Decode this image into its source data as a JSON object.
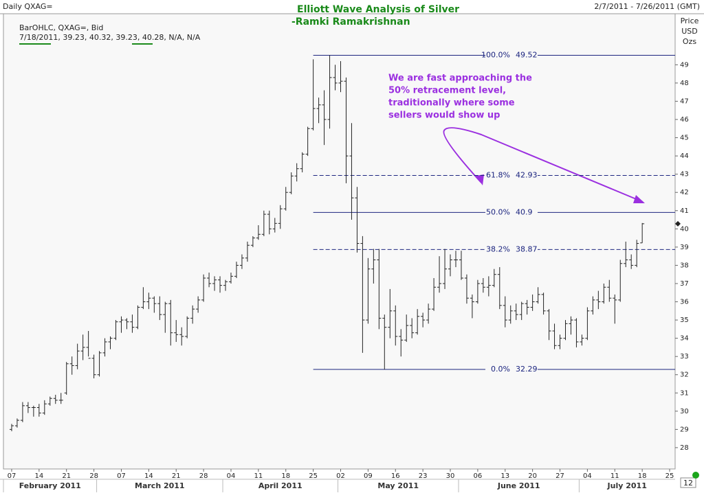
{
  "chart_data": {
    "type": "ohlc",
    "symbol": "Daily QXAG=",
    "title": "Elliott Wave Analysis of Silver",
    "subtitle": "-Ramki Ramakrishnan",
    "date_range": "2/7/2011 - 7/26/2011 (GMT)",
    "series_label": "BarOHLC, QXAG=, Bid",
    "info_line": "7/18/2011, 39.23, 40.32, 39.23, 40.28, N/A, N/A",
    "y_axis_label": [
      "Price",
      "USD",
      "Ozs"
    ],
    "annotation": [
      "We are fast approaching the",
      "50% retracement level,",
      "traditionally where some",
      "sellers would show up"
    ],
    "page_number": "12",
    "color": "#222222",
    "open": [
      29.0,
      29.2,
      29.5,
      30.3,
      30.2,
      30.2,
      29.9,
      30.4,
      30.7,
      30.6,
      31.0,
      32.6,
      32.5,
      33.3,
      33.5,
      32.9,
      32.0,
      33.2,
      33.8,
      34.0,
      34.9,
      35.0,
      34.9,
      34.6,
      35.7,
      36.0,
      36.2,
      35.9,
      35.3,
      35.9,
      34.3,
      34.2,
      34.1,
      35.1,
      35.6,
      36.1,
      37.3,
      37.0,
      37.2,
      36.9,
      37.1,
      37.4,
      38.0,
      38.4,
      39.1,
      39.5,
      39.7,
      40.8,
      40.0,
      40.3,
      41.1,
      42.0,
      42.9,
      43.3,
      44.1,
      45.5,
      46.6,
      46.8,
      46.0,
      48.3,
      48.0,
      48.1,
      44.0,
      41.7,
      39.2,
      35.0,
      37.8,
      38.3,
      35.1,
      34.6,
      35.5,
      34.1,
      33.9,
      34.7,
      34.3,
      35.2,
      35.0,
      35.6,
      36.8,
      37.0,
      37.8,
      38.3,
      38.3,
      37.3,
      36.2,
      36.0,
      37.0,
      36.8,
      36.9,
      37.5,
      35.8,
      35.0,
      35.5,
      35.3,
      35.9,
      35.7,
      36.0,
      36.4,
      35.5,
      34.4,
      33.6,
      34.0,
      34.8,
      35.0,
      33.8,
      34.0,
      35.5,
      36.1,
      36.0,
      36.8,
      36.2,
      36.1,
      38.1,
      38.3,
      38.0,
      39.23
    ],
    "high": [
      29.3,
      29.6,
      30.5,
      30.5,
      30.3,
      30.4,
      30.6,
      30.8,
      30.9,
      31.0,
      32.7,
      33.0,
      33.7,
      34.2,
      34.4,
      33.1,
      33.3,
      34.0,
      34.1,
      35.0,
      35.2,
      35.1,
      35.3,
      35.8,
      36.8,
      36.5,
      36.3,
      36.3,
      36.0,
      36.1,
      35.0,
      34.6,
      35.2,
      35.8,
      36.3,
      37.5,
      37.6,
      37.4,
      37.4,
      37.2,
      37.6,
      38.2,
      38.6,
      39.3,
      39.6,
      40.2,
      41.0,
      41.0,
      40.6,
      41.3,
      42.3,
      43.1,
      43.6,
      44.2,
      45.6,
      49.3,
      47.2,
      47.6,
      49.52,
      49.0,
      49.2,
      48.3,
      45.8,
      42.3,
      39.6,
      38.4,
      38.9,
      38.9,
      35.3,
      36.7,
      35.8,
      34.5,
      35.3,
      35.1,
      35.6,
      35.4,
      35.9,
      37.3,
      38.5,
      38.9,
      38.6,
      38.8,
      38.8,
      37.5,
      36.4,
      37.2,
      37.3,
      37.4,
      37.8,
      37.9,
      36.3,
      35.8,
      35.9,
      36.0,
      36.1,
      36.4,
      36.8,
      36.5,
      35.6,
      34.8,
      34.2,
      35.0,
      35.2,
      35.1,
      34.2,
      35.7,
      36.3,
      36.6,
      37.0,
      37.2,
      36.4,
      38.3,
      39.3,
      38.6,
      39.4,
      40.32
    ],
    "low": [
      28.9,
      29.1,
      29.4,
      29.9,
      29.7,
      29.7,
      29.8,
      30.3,
      30.4,
      30.4,
      30.9,
      32.0,
      32.3,
      32.8,
      33.0,
      31.8,
      31.9,
      33.0,
      33.4,
      33.9,
      34.3,
      34.5,
      34.3,
      34.5,
      35.6,
      35.6,
      35.4,
      35.0,
      34.3,
      33.6,
      33.8,
      33.6,
      34.0,
      34.8,
      35.4,
      36.0,
      36.8,
      36.6,
      36.5,
      36.6,
      37.0,
      37.3,
      37.8,
      38.2,
      39.0,
      39.4,
      39.6,
      39.7,
      39.8,
      40.0,
      41.0,
      41.9,
      42.6,
      43.1,
      44.0,
      45.4,
      45.8,
      44.6,
      45.5,
      47.6,
      47.5,
      42.5,
      40.5,
      38.7,
      33.2,
      34.8,
      37.0,
      34.5,
      32.29,
      34.0,
      33.6,
      33.0,
      33.8,
      34.0,
      34.2,
      34.6,
      34.8,
      35.5,
      36.5,
      36.7,
      37.4,
      37.9,
      37.2,
      35.9,
      35.1,
      35.9,
      36.5,
      36.3,
      36.8,
      35.6,
      34.6,
      34.8,
      35.0,
      35.0,
      35.3,
      35.5,
      35.9,
      35.3,
      33.9,
      33.4,
      33.4,
      33.9,
      34.2,
      33.5,
      33.6,
      33.9,
      35.3,
      35.6,
      35.9,
      36.0,
      34.8,
      36.0,
      37.9,
      37.8,
      37.9,
      39.23
    ],
    "close": [
      29.2,
      29.5,
      30.3,
      30.2,
      30.2,
      29.9,
      30.4,
      30.7,
      30.6,
      30.6,
      32.6,
      32.5,
      33.3,
      33.5,
      32.9,
      32.0,
      33.2,
      33.8,
      34.0,
      34.9,
      35.0,
      34.9,
      34.6,
      35.7,
      36.0,
      36.2,
      35.9,
      35.3,
      35.9,
      34.3,
      34.2,
      34.1,
      35.1,
      35.6,
      36.1,
      37.3,
      37.0,
      37.2,
      36.9,
      37.1,
      37.4,
      38.0,
      38.4,
      39.1,
      39.5,
      39.7,
      40.8,
      40.0,
      40.3,
      41.1,
      42.0,
      42.9,
      43.3,
      44.1,
      45.5,
      46.6,
      46.8,
      46.0,
      48.3,
      48.0,
      48.1,
      44.0,
      41.7,
      39.2,
      35.0,
      37.8,
      38.3,
      35.1,
      34.6,
      35.5,
      34.1,
      33.9,
      34.7,
      34.3,
      35.2,
      35.0,
      35.6,
      36.8,
      37.0,
      37.8,
      38.3,
      38.3,
      37.3,
      36.2,
      36.0,
      37.0,
      36.8,
      36.9,
      37.5,
      35.8,
      35.0,
      35.5,
      35.3,
      35.9,
      35.7,
      36.0,
      36.4,
      35.5,
      34.4,
      33.6,
      34.0,
      34.8,
      35.0,
      33.8,
      34.0,
      35.5,
      36.1,
      36.0,
      36.8,
      36.2,
      36.1,
      38.1,
      38.3,
      38.0,
      39.2,
      40.28
    ],
    "xlim": [
      -1.5,
      121
    ],
    "ylim": [
      26.83,
      51.8
    ],
    "yticks": [
      28,
      29,
      30,
      31,
      32,
      33,
      34,
      35,
      36,
      37,
      38,
      39,
      40,
      41,
      42,
      43,
      44,
      45,
      46,
      47,
      48,
      49
    ],
    "xticks": [
      {
        "value": 0,
        "label": "07"
      },
      {
        "value": 5,
        "label": "14"
      },
      {
        "value": 10,
        "label": "21"
      },
      {
        "value": 15,
        "label": "28"
      },
      {
        "value": 20,
        "label": "07"
      },
      {
        "value": 25,
        "label": "14"
      },
      {
        "value": 30,
        "label": "21"
      },
      {
        "value": 35,
        "label": "28"
      },
      {
        "value": 40,
        "label": "04"
      },
      {
        "value": 45,
        "label": "11"
      },
      {
        "value": 50,
        "label": "18"
      },
      {
        "value": 55,
        "label": "25"
      },
      {
        "value": 60,
        "label": "02"
      },
      {
        "value": 65,
        "label": "09"
      },
      {
        "value": 70,
        "label": "16"
      },
      {
        "value": 75,
        "label": "23"
      },
      {
        "value": 80,
        "label": "30"
      },
      {
        "value": 85,
        "label": "06"
      },
      {
        "value": 90,
        "label": "13"
      },
      {
        "value": 95,
        "label": "20"
      },
      {
        "value": 100,
        "label": "27"
      },
      {
        "value": 105,
        "label": "04"
      },
      {
        "value": 110,
        "label": "11"
      },
      {
        "value": 115,
        "label": "18"
      },
      {
        "value": 120,
        "label": "25"
      }
    ],
    "months": [
      {
        "label": "February 2011",
        "start": -1.5,
        "end": 15.5
      },
      {
        "label": "March 2011",
        "start": 15.5,
        "end": 38.5
      },
      {
        "label": "April 2011",
        "start": 38.5,
        "end": 59.5
      },
      {
        "label": "May 2011",
        "start": 59.5,
        "end": 81.5
      },
      {
        "label": "June 2011",
        "start": 81.5,
        "end": 103.5
      },
      {
        "label": "July 2011",
        "start": 103.5,
        "end": 121
      }
    ],
    "fib": {
      "start": 55,
      "color": "#1a237e",
      "levels": [
        {
          "label": "100.0%",
          "value": 49.52,
          "dashed": false
        },
        {
          "label": "61.8%",
          "value": 42.93,
          "dashed": true
        },
        {
          "label": "50.0%",
          "value": 40.9,
          "dashed": false
        },
        {
          "label": "38.2%",
          "value": 38.87,
          "dashed": true
        },
        {
          "label": "0.0%",
          "value": 32.29,
          "dashed": false
        }
      ]
    }
  }
}
